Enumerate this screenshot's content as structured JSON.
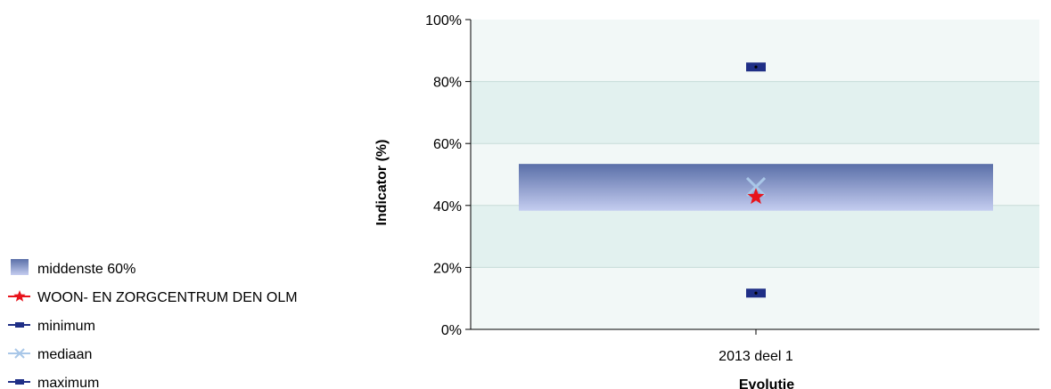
{
  "chart_data": {
    "type": "box",
    "title": "",
    "xlabel": "Evolutie",
    "ylabel": "Indicator (%)",
    "ylim": [
      0,
      100
    ],
    "yticks": [
      "0%",
      "20%",
      "40%",
      "60%",
      "80%",
      "100%"
    ],
    "categories": [
      "2013 deel 1"
    ],
    "middle60": {
      "low": 38.3,
      "high": 53.4
    },
    "minimum": 11.7,
    "maximum": 84.7,
    "mediaan": 46.0,
    "facility": 42.8,
    "grid": true,
    "legend_position": "bottom-left",
    "legend": [
      {
        "key": "box",
        "label": "middenste 60%"
      },
      {
        "key": "facility",
        "label": "WOON- EN ZORGCENTRUM DEN OLM"
      },
      {
        "key": "minimum",
        "label": "minimum"
      },
      {
        "key": "mediaan",
        "label": "mediaan"
      },
      {
        "key": "maximum",
        "label": "maximum"
      }
    ],
    "colors": {
      "box_top": "#5a6fa8",
      "box_bottom": "#c5cdf0",
      "facility": "#e8141c",
      "minmax": "#1f2f86",
      "mediaan": "#a9c7e8",
      "band_light": "#f2f8f7",
      "band_dark": "#e2f1ef",
      "grid": "#c7dcd8"
    }
  }
}
